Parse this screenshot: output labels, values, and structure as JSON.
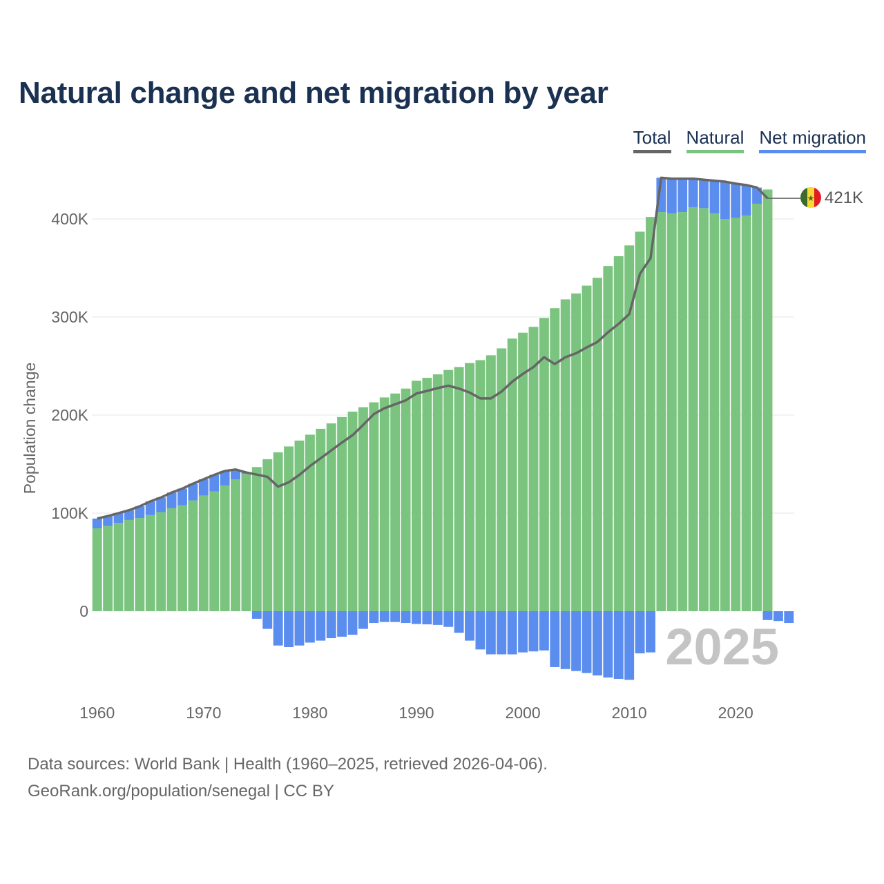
{
  "title": "Natural change and net migration by year",
  "legend": [
    {
      "label": "Total",
      "color": "#666666"
    },
    {
      "label": "Natural",
      "color": "#7bc47f"
    },
    {
      "label": "Net migration",
      "color": "#5b8def"
    }
  ],
  "footer": {
    "line1": "Data sources: World Bank | Health (1960–2025, retrieved 2026-04-06).",
    "line2": "GeoRank.org/population/senegal | CC BY"
  },
  "chart_data": {
    "type": "bar",
    "title": "Natural change and net migration by year",
    "xlabel": "",
    "ylabel": "Population change",
    "ylim": [
      -80000,
      450000
    ],
    "yticks": [
      0,
      100000,
      200000,
      300000,
      400000
    ],
    "ytick_labels": [
      "0",
      "100K",
      "200K",
      "300K",
      "400K"
    ],
    "xticks": [
      1960,
      1970,
      1980,
      1990,
      2000,
      2010,
      2020
    ],
    "xtick_labels": [
      "1960",
      "1970",
      "1980",
      "1990",
      "2000",
      "2010",
      "2020"
    ],
    "grid": true,
    "legend_position": "top-right",
    "current_year_label": "2025",
    "end_label": "421K",
    "x": [
      1960,
      1961,
      1962,
      1963,
      1964,
      1965,
      1966,
      1967,
      1968,
      1969,
      1970,
      1971,
      1972,
      1973,
      1974,
      1975,
      1976,
      1977,
      1978,
      1979,
      1980,
      1981,
      1982,
      1983,
      1984,
      1985,
      1986,
      1987,
      1988,
      1989,
      1990,
      1991,
      1992,
      1993,
      1994,
      1995,
      1996,
      1997,
      1998,
      1999,
      2000,
      2001,
      2002,
      2003,
      2004,
      2005,
      2006,
      2007,
      2008,
      2009,
      2010,
      2011,
      2012,
      2013,
      2014,
      2015,
      2016,
      2017,
      2018,
      2019,
      2020,
      2021,
      2022,
      2023,
      2024,
      2025
    ],
    "series": [
      {
        "name": "Natural",
        "color": "#7bc47f",
        "values": [
          84500,
          87000,
          90000,
          93000,
          95000,
          98000,
          101000,
          105000,
          108000,
          113000,
          118000,
          122000,
          128000,
          134500,
          140000,
          147000,
          155000,
          162000,
          168000,
          174000,
          180000,
          186000,
          191500,
          198000,
          203500,
          208000,
          213000,
          218000,
          222000,
          227000,
          235000,
          238000,
          241500,
          246000,
          249000,
          253000,
          256000,
          261000,
          268000,
          278000,
          284000,
          290000,
          299000,
          309000,
          318000,
          324000,
          332000,
          340000,
          352000,
          362000,
          373000,
          387000,
          402000,
          407000,
          405500,
          407000,
          412000,
          411000,
          405500,
          400000,
          401000,
          403500,
          415500,
          430000,
          null,
          null
        ]
      },
      {
        "name": "Net migration",
        "color": "#5b8def",
        "values": [
          10000,
          10000,
          10000,
          10000,
          12000,
          14000,
          15000,
          16000,
          17000,
          17000,
          16500,
          17000,
          15000,
          10000,
          1500,
          -7700,
          -18000,
          -35000,
          -36600,
          -35000,
          -32000,
          -30000,
          -27500,
          -26000,
          -24000,
          -18000,
          -12000,
          -11000,
          -11000,
          -12000,
          -13000,
          -13400,
          -14000,
          -16000,
          -22000,
          -30000,
          -39000,
          -44000,
          -44000,
          -44000,
          -42000,
          -41000,
          -40000,
          -57000,
          -59000,
          -61000,
          -63000,
          -65500,
          -67600,
          -69000,
          -70000,
          -43000,
          -42000,
          35000,
          35500,
          34000,
          29000,
          29000,
          33500,
          38000,
          35000,
          31000,
          16500,
          -9000,
          -10000,
          -12000
        ]
      },
      {
        "name": "Total",
        "color": "#666666",
        "type": "line",
        "values": [
          94500,
          97000,
          100000,
          103000,
          107000,
          112000,
          116000,
          121000,
          125000,
          130000,
          134500,
          139000,
          143000,
          144500,
          141500,
          139300,
          137000,
          127000,
          131400,
          139000,
          148000,
          156000,
          164000,
          172000,
          179500,
          190000,
          201000,
          207000,
          211000,
          215000,
          222000,
          224600,
          227500,
          230000,
          227000,
          223000,
          217000,
          217000,
          224000,
          234000,
          242000,
          249000,
          259000,
          252000,
          259000,
          263000,
          269000,
          274500,
          284400,
          293000,
          303000,
          344000,
          360000,
          442000,
          441000,
          441000,
          441000,
          440000,
          439000,
          438000,
          436000,
          434500,
          432000,
          421000,
          null,
          null
        ]
      }
    ]
  }
}
